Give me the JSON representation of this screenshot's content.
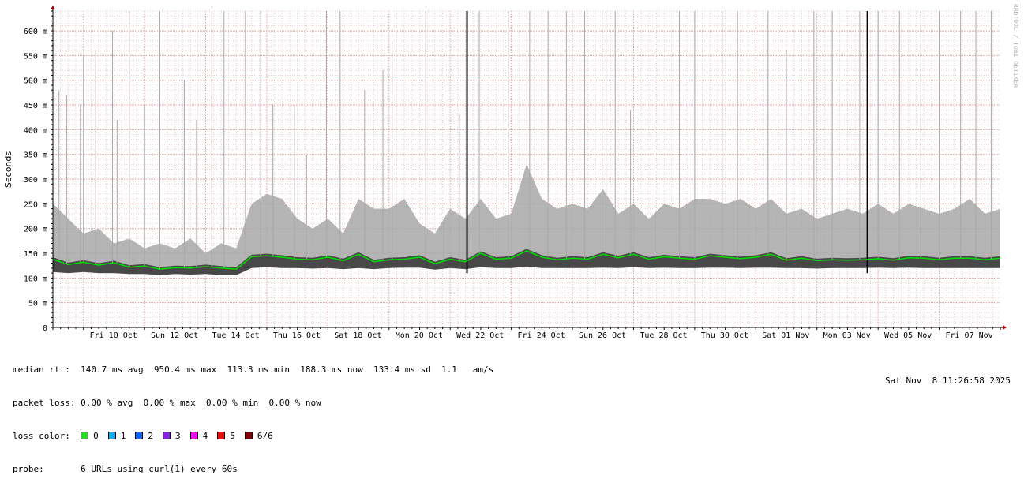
{
  "chart_data": {
    "type": "area",
    "ylabel": "Seconds",
    "watermark": "RRDTOOL / TOBI OETIKER",
    "y_ticks": [
      "0",
      "50 m",
      "100 m",
      "150 m",
      "200 m",
      "250 m",
      "300 m",
      "350 m",
      "400 m",
      "450 m",
      "500 m",
      "550 m",
      "600 m"
    ],
    "ylim": [
      0,
      0.64
    ],
    "x_ticks": [
      "Fri 10 Oct",
      "Sun 12 Oct",
      "Tue 14 Oct",
      "Thu 16 Oct",
      "Sat 18 Oct",
      "Mon 20 Oct",
      "Wed 22 Oct",
      "Fri 24 Oct",
      "Sun 26 Oct",
      "Tue 28 Oct",
      "Thu 30 Oct",
      "Sat 01 Nov",
      "Mon 03 Nov",
      "Wed 05 Nov",
      "Fri 07 Nov"
    ],
    "x_range_days": [
      0,
      31
    ],
    "grid": true,
    "series": [
      {
        "name": "median rtt",
        "color": "#00e000",
        "days": [
          0,
          0.5,
          1,
          1.5,
          2,
          2.5,
          3,
          3.5,
          4,
          4.5,
          5,
          5.5,
          6,
          6.5,
          7,
          7.5,
          8,
          8.5,
          9,
          9.5,
          10,
          10.5,
          11,
          11.5,
          12,
          12.5,
          13,
          13.5,
          14,
          14.5,
          15,
          15.5,
          16,
          16.5,
          17,
          17.5,
          18,
          18.5,
          19,
          19.5,
          20,
          20.5,
          21,
          21.5,
          22,
          22.5,
          23,
          23.5,
          24,
          24.5,
          25,
          25.5,
          26,
          26.5,
          27,
          27.5,
          28,
          28.5,
          29,
          29.5,
          30,
          30.5,
          31
        ],
        "values": [
          0.138,
          0.127,
          0.132,
          0.126,
          0.131,
          0.122,
          0.124,
          0.118,
          0.121,
          0.12,
          0.123,
          0.12,
          0.118,
          0.143,
          0.145,
          0.142,
          0.138,
          0.137,
          0.142,
          0.135,
          0.148,
          0.133,
          0.137,
          0.138,
          0.142,
          0.129,
          0.138,
          0.133,
          0.15,
          0.138,
          0.14,
          0.155,
          0.142,
          0.137,
          0.14,
          0.138,
          0.148,
          0.141,
          0.148,
          0.138,
          0.143,
          0.14,
          0.138,
          0.145,
          0.142,
          0.139,
          0.142,
          0.148,
          0.136,
          0.14,
          0.135,
          0.137,
          0.136,
          0.137,
          0.139,
          0.136,
          0.141,
          0.14,
          0.137,
          0.14,
          0.14,
          0.137,
          0.14
        ]
      },
      {
        "name": "max rtt",
        "color": "#a8a8a8",
        "days": [
          0,
          0.5,
          1,
          1.5,
          2,
          2.5,
          3,
          3.5,
          4,
          4.5,
          5,
          5.5,
          6,
          6.5,
          7,
          7.5,
          8,
          8.5,
          9,
          9.5,
          10,
          10.5,
          11,
          11.5,
          12,
          12.5,
          13,
          13.5,
          14,
          14.5,
          15,
          15.5,
          16,
          16.5,
          17,
          17.5,
          18,
          18.5,
          19,
          19.5,
          20,
          20.5,
          21,
          21.5,
          22,
          22.5,
          23,
          23.5,
          24,
          24.5,
          25,
          25.5,
          26,
          26.5,
          27,
          27.5,
          28,
          28.5,
          29,
          29.5,
          30,
          30.5,
          31
        ],
        "values": [
          0.25,
          0.22,
          0.19,
          0.2,
          0.17,
          0.18,
          0.16,
          0.17,
          0.16,
          0.18,
          0.15,
          0.17,
          0.16,
          0.25,
          0.27,
          0.26,
          0.22,
          0.2,
          0.22,
          0.19,
          0.26,
          0.24,
          0.24,
          0.26,
          0.21,
          0.19,
          0.24,
          0.22,
          0.26,
          0.22,
          0.23,
          0.33,
          0.26,
          0.24,
          0.25,
          0.24,
          0.28,
          0.23,
          0.25,
          0.22,
          0.25,
          0.24,
          0.26,
          0.26,
          0.25,
          0.26,
          0.24,
          0.26,
          0.23,
          0.24,
          0.22,
          0.23,
          0.24,
          0.23,
          0.25,
          0.23,
          0.25,
          0.24,
          0.23,
          0.24,
          0.26,
          0.23,
          0.24
        ]
      },
      {
        "name": "min rtt",
        "color": "#3c3c3c",
        "days": [
          0,
          0.5,
          1,
          1.5,
          2,
          2.5,
          3,
          3.5,
          4,
          4.5,
          5,
          5.5,
          6,
          6.5,
          7,
          7.5,
          8,
          8.5,
          9,
          9.5,
          10,
          10.5,
          11,
          11.5,
          12,
          12.5,
          13,
          13.5,
          14,
          14.5,
          15,
          15.5,
          16,
          16.5,
          17,
          17.5,
          18,
          18.5,
          19,
          19.5,
          20,
          20.5,
          21,
          21.5,
          22,
          22.5,
          23,
          23.5,
          24,
          24.5,
          25,
          25.5,
          26,
          26.5,
          27,
          27.5,
          28,
          28.5,
          29,
          29.5,
          30,
          30.5,
          31
        ],
        "values": [
          0.112,
          0.11,
          0.112,
          0.11,
          0.11,
          0.108,
          0.108,
          0.106,
          0.108,
          0.107,
          0.108,
          0.106,
          0.106,
          0.12,
          0.122,
          0.12,
          0.12,
          0.119,
          0.12,
          0.118,
          0.12,
          0.118,
          0.12,
          0.121,
          0.121,
          0.117,
          0.12,
          0.118,
          0.122,
          0.12,
          0.12,
          0.123,
          0.12,
          0.12,
          0.12,
          0.12,
          0.121,
          0.12,
          0.122,
          0.12,
          0.121,
          0.12,
          0.12,
          0.121,
          0.121,
          0.12,
          0.121,
          0.121,
          0.12,
          0.12,
          0.119,
          0.12,
          0.12,
          0.12,
          0.121,
          0.12,
          0.121,
          0.12,
          0.12,
          0.12,
          0.12,
          0.12,
          0.12
        ]
      },
      {
        "name": "rtt spikes",
        "color": "#a8a8a8",
        "days": [
          0.2,
          0.45,
          0.9,
          1.0,
          1.4,
          1.95,
          2.1,
          2.5,
          3.0,
          3.5,
          4.3,
          4.7,
          5.2,
          5.6,
          6.3,
          6.8,
          7.2,
          7.9,
          8.3,
          8.95,
          9.4,
          10.2,
          10.8,
          11.1,
          12.2,
          12.8,
          13.3,
          13.95,
          14.4,
          14.9,
          15.6,
          16.2,
          16.8,
          17.4,
          18.1,
          18.4,
          18.9,
          19.7,
          20.5,
          21.0,
          21.9,
          22.4,
          23.4,
          24.0,
          24.9,
          25.5,
          26.4,
          27.0,
          27.7,
          28.4,
          29.0,
          29.7,
          30.2,
          30.7
        ],
        "values": [
          0.48,
          0.47,
          0.45,
          0.55,
          0.56,
          0.6,
          0.42,
          0.64,
          0.45,
          0.64,
          0.5,
          0.42,
          0.64,
          0.64,
          0.64,
          0.64,
          0.45,
          0.45,
          0.35,
          0.64,
          0.64,
          0.48,
          0.52,
          0.58,
          0.64,
          0.49,
          0.43,
          0.64,
          0.35,
          0.64,
          0.64,
          0.64,
          0.64,
          0.64,
          0.64,
          0.64,
          0.44,
          0.6,
          0.64,
          0.64,
          0.64,
          0.64,
          0.64,
          0.56,
          0.64,
          0.64,
          0.64,
          0.64,
          0.64,
          0.64,
          0.64,
          0.64,
          0.64,
          0.64
        ]
      },
      {
        "name": "loss markers",
        "color": "#000000",
        "days": [
          13.55,
          26.65
        ],
        "values": [
          0.64,
          0.64
        ]
      }
    ]
  },
  "legend": {
    "median_rtt_label": "median rtt:",
    "median_rtt_value": "140.7 ms avg  950.4 ms max  113.3 ms min  188.3 ms now  133.4 ms sd  1.1   am/s",
    "packet_loss_label": "packet loss:",
    "packet_loss_value": "0.00 % avg  0.00 % max  0.00 % min  0.00 % now",
    "loss_color_label": "loss color:",
    "loss_colors": [
      {
        "label": "0",
        "color": "#22dd22"
      },
      {
        "label": "1",
        "color": "#11aaee"
      },
      {
        "label": "2",
        "color": "#1166ee"
      },
      {
        "label": "3",
        "color": "#8822ee"
      },
      {
        "label": "4",
        "color": "#ee11ee"
      },
      {
        "label": "5",
        "color": "#ee1111"
      },
      {
        "label": "6/6",
        "color": "#880000"
      }
    ],
    "probe_label": "probe:",
    "probe_value": "6 URLs using curl(1) every 60s"
  },
  "timestamp": "Sat Nov  8 11:26:58 2025"
}
